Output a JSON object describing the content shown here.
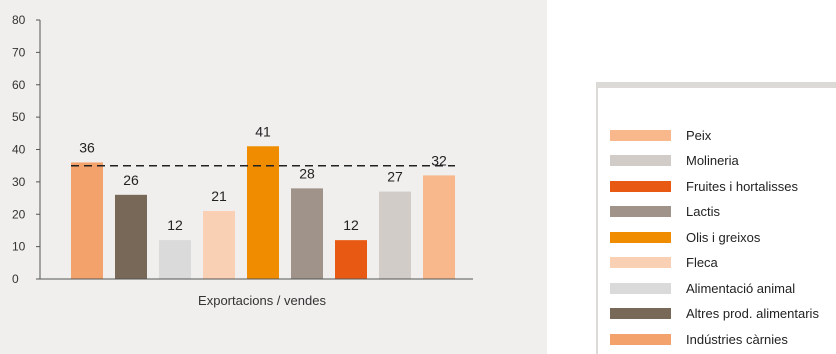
{
  "chart_data": {
    "type": "bar",
    "xlabel": "Exportacions / vendes",
    "ylabel": "",
    "ylim": [
      0,
      80
    ],
    "yticks": [
      0,
      10,
      20,
      30,
      40,
      50,
      60,
      70,
      80
    ],
    "reference_line": 35,
    "grid": false,
    "legend_position": "right",
    "bars": [
      {
        "category": "Indústries càrnies",
        "value": 36,
        "color": "#f4a26c"
      },
      {
        "category": "Altres prod. alimentaris",
        "value": 26,
        "color": "#786858"
      },
      {
        "category": "Alimentació animal",
        "value": 12,
        "color": "#dadada"
      },
      {
        "category": "Fleca",
        "value": 21,
        "color": "#fad0b5"
      },
      {
        "category": "Olis i greixos",
        "value": 41,
        "color": "#f08c00"
      },
      {
        "category": "Lactis",
        "value": 28,
        "color": "#a0948a"
      },
      {
        "category": "Fruites i hortalisses",
        "value": 12,
        "color": "#e85a14"
      },
      {
        "category": "Molineria",
        "value": 27,
        "color": "#d2ccc8"
      },
      {
        "category": "Peix",
        "value": 32,
        "color": "#f8b88c"
      }
    ],
    "legend": [
      {
        "label": "Peix",
        "color": "#f8b88c"
      },
      {
        "label": "Molineria",
        "color": "#d2ccc8"
      },
      {
        "label": "Fruites i hortalisses",
        "color": "#e85a14"
      },
      {
        "label": "Lactis",
        "color": "#a0948a"
      },
      {
        "label": "Olis i greixos",
        "color": "#f08c00"
      },
      {
        "label": "Fleca",
        "color": "#fad0b5"
      },
      {
        "label": "Alimentació animal",
        "color": "#dadada"
      },
      {
        "label": "Altres prod. alimentaris",
        "color": "#786858"
      },
      {
        "label": "Indústries càrnies",
        "color": "#f4a26c"
      }
    ]
  }
}
